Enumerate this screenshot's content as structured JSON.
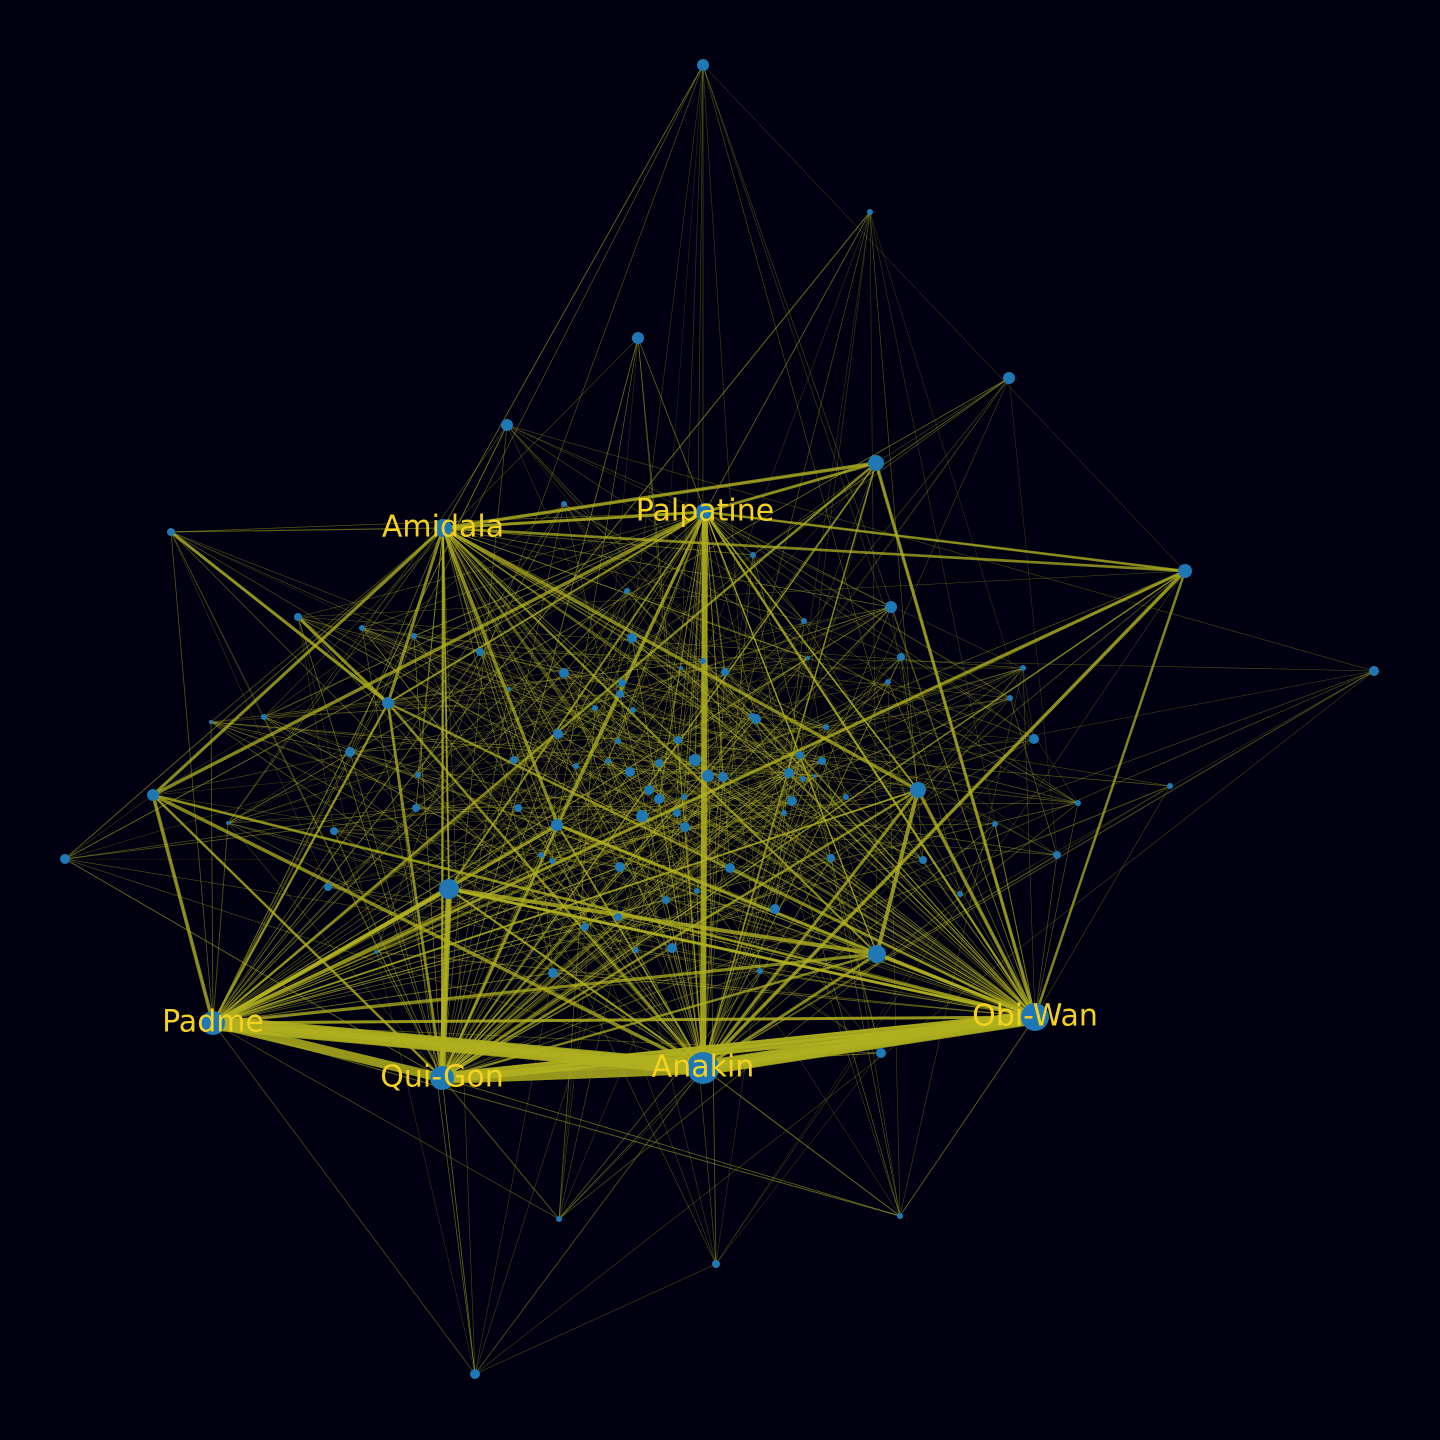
{
  "colors": {
    "background": "#000010",
    "node": "#1f77b4",
    "edge": "#b0b020",
    "label": "#f5d21f"
  },
  "graph": {
    "nodes": [
      {
        "id": "anakin",
        "label": "Anakin",
        "degree": 10
      },
      {
        "id": "obiwan",
        "label": "Obi-Wan",
        "degree": 9
      },
      {
        "id": "padme",
        "label": "Padme",
        "degree": 8
      },
      {
        "id": "quigon",
        "label": "Qui-Gon",
        "degree": 8
      },
      {
        "id": "palpatine",
        "label": "Palpatine",
        "degree": 6
      },
      {
        "id": "amidala",
        "label": "Amidala",
        "degree": 6
      }
    ],
    "major_links": [
      {
        "source": "padme",
        "target": "anakin",
        "weight": 10
      },
      {
        "source": "quigon",
        "target": "anakin",
        "weight": 8
      },
      {
        "source": "anakin",
        "target": "obiwan",
        "weight": 10
      },
      {
        "source": "quigon",
        "target": "obiwan",
        "weight": 7
      },
      {
        "source": "padme",
        "target": "quigon",
        "weight": 6
      },
      {
        "source": "palpatine",
        "target": "anakin",
        "weight": 4
      },
      {
        "source": "amidala",
        "target": "palpatine",
        "weight": 2
      },
      {
        "source": "amidala",
        "target": "quigon",
        "weight": 1.5
      },
      {
        "source": "padme",
        "target": "obiwan",
        "weight": 2
      },
      {
        "source": "palpatine",
        "target": "obiwan",
        "weight": 1.5
      }
    ]
  }
}
